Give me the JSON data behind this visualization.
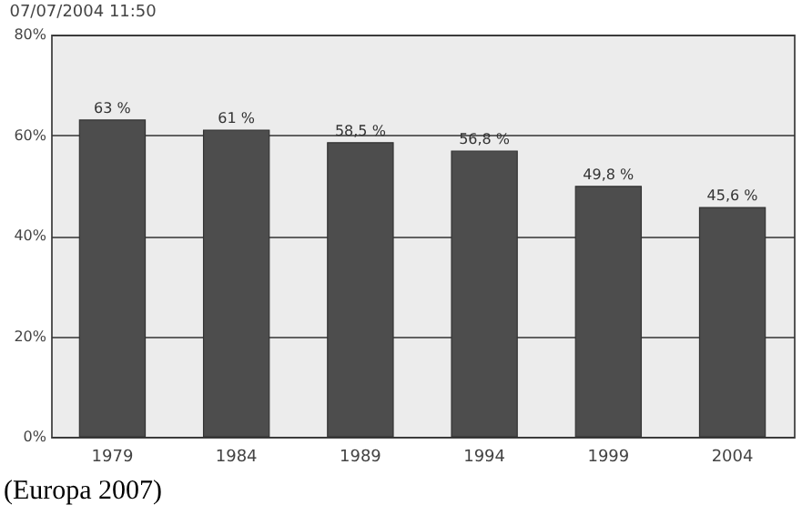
{
  "chart_data": {
    "type": "bar",
    "title": "07/07/2004  11:50",
    "categories": [
      "1979",
      "1984",
      "1989",
      "1994",
      "1999",
      "2004"
    ],
    "values": [
      63,
      61,
      58.5,
      56.8,
      49.8,
      45.6
    ],
    "value_labels": [
      "63 %",
      "61 %",
      "58,5 %",
      "56,8 %",
      "49,8 %",
      "45,6 %"
    ],
    "color": "#4d4d4d",
    "ylim": [
      0,
      80
    ],
    "yticks": [
      {
        "value": 0,
        "label": "0%"
      },
      {
        "value": 20,
        "label": "20%"
      },
      {
        "value": 40,
        "label": "40%"
      },
      {
        "value": 60,
        "label": "60%"
      },
      {
        "value": 80,
        "label": "80%"
      }
    ],
    "grid": "y",
    "annotations": [
      "(Europa 2007)"
    ]
  }
}
